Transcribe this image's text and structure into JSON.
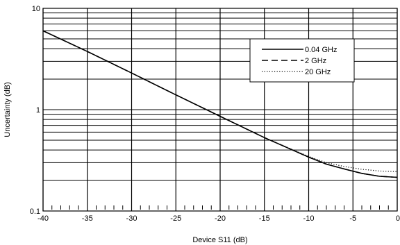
{
  "chart_data": {
    "type": "line",
    "xlabel": "Device S11 (dB)",
    "ylabel": "Uncertainty (dB)",
    "xlim": [
      -40,
      0
    ],
    "ylim": [
      0.1,
      10
    ],
    "y_scale": "log",
    "grid": true,
    "x_ticks": [
      -40,
      -35,
      -30,
      -25,
      -20,
      -15,
      -10,
      -5,
      0
    ],
    "x_tick_labels": [
      "-40",
      "-35",
      "-30",
      "-25",
      "-20",
      "-15",
      "-10",
      "-5",
      "0"
    ],
    "y_ticks": [
      0.1,
      1,
      10
    ],
    "y_tick_labels": [
      "0.1",
      "1",
      "10"
    ],
    "legend_position": "top-right",
    "series": [
      {
        "name": "0.04 GHz",
        "line_style": "solid",
        "x": [
          -40,
          -35,
          -30,
          -25,
          -20,
          -15,
          -10,
          -8,
          -6,
          -4,
          -2,
          0
        ],
        "y": [
          6.0,
          3.75,
          2.3,
          1.4,
          0.86,
          0.53,
          0.34,
          0.29,
          0.26,
          0.235,
          0.22,
          0.215
        ]
      },
      {
        "name": "2 GHz",
        "line_style": "dashed",
        "x": [
          -40,
          -35,
          -30,
          -25,
          -20,
          -15,
          -10,
          -8,
          -6,
          -4,
          -2,
          0
        ],
        "y": [
          6.0,
          3.75,
          2.3,
          1.4,
          0.86,
          0.53,
          0.34,
          0.29,
          0.26,
          0.235,
          0.22,
          0.215
        ]
      },
      {
        "name": "20 GHz",
        "line_style": "dotted",
        "x": [
          -40,
          -35,
          -30,
          -25,
          -20,
          -15,
          -10,
          -8,
          -6,
          -4,
          -2,
          0
        ],
        "y": [
          6.0,
          3.75,
          2.3,
          1.4,
          0.86,
          0.53,
          0.345,
          0.3,
          0.275,
          0.258,
          0.248,
          0.245
        ]
      }
    ]
  }
}
